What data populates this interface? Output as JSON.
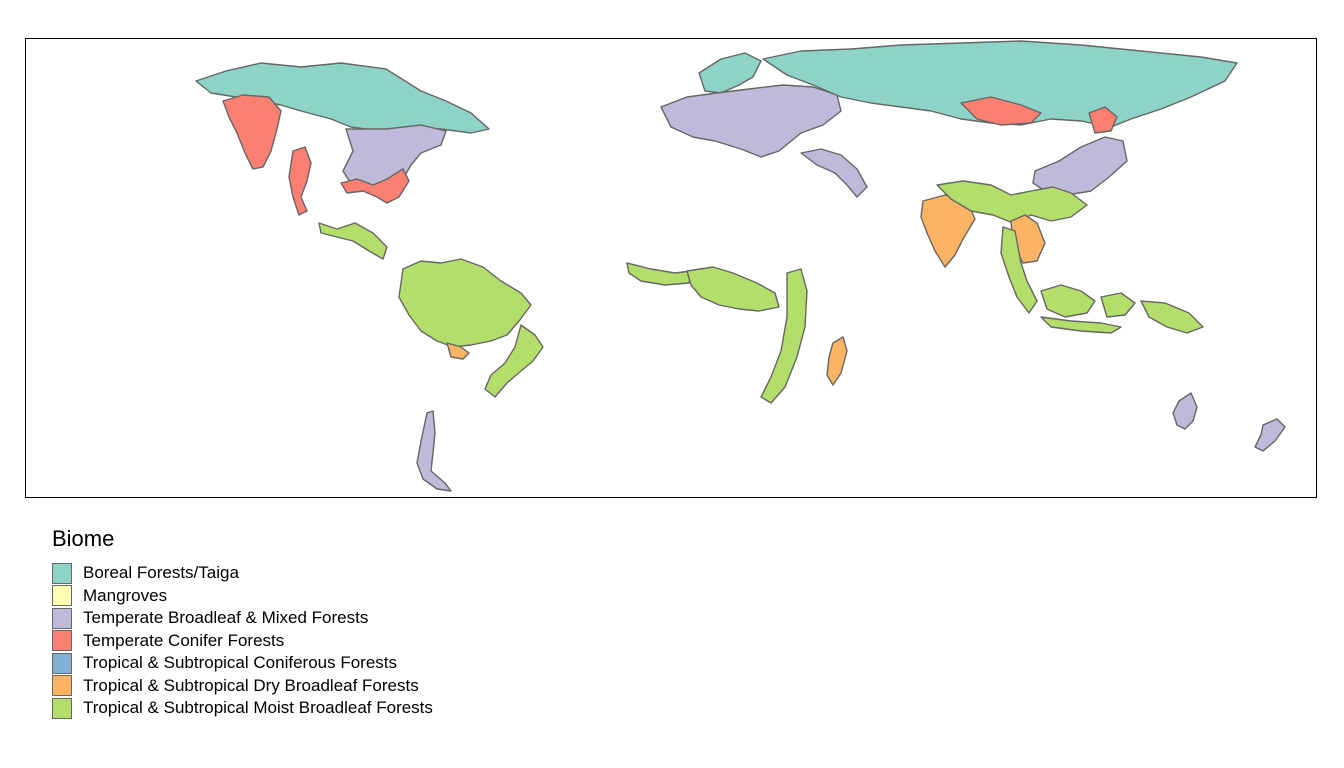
{
  "legend": {
    "title": "Biome",
    "items": [
      {
        "id": "boreal",
        "label": "Boreal Forests/Taiga",
        "color": "#8dd3c7"
      },
      {
        "id": "mangroves",
        "label": "Mangroves",
        "color": "#ffffb3"
      },
      {
        "id": "temp-broadleaf",
        "label": "Temperate Broadleaf & Mixed Forests",
        "color": "#bebada"
      },
      {
        "id": "temp-conifer",
        "label": "Temperate Conifer Forests",
        "color": "#fb8072"
      },
      {
        "id": "trop-conifer",
        "label": "Tropical & Subtropical Coniferous Forests",
        "color": "#80b1d3"
      },
      {
        "id": "trop-dry",
        "label": "Tropical & Subtropical Dry Broadleaf Forests",
        "color": "#fdb462"
      },
      {
        "id": "trop-moist",
        "label": "Tropical & Subtropical Moist Broadleaf Forests",
        "color": "#b3de69"
      }
    ]
  },
  "map": {
    "regions": [
      {
        "name": "boreal-north-america",
        "biome": "boreal"
      },
      {
        "name": "conifer-pacific-northwest",
        "biome": "temp-conifer"
      },
      {
        "name": "broadleaf-eastern-north-america",
        "biome": "temp-broadleaf"
      },
      {
        "name": "conifer-southeast-us",
        "biome": "temp-conifer"
      },
      {
        "name": "conifer-mexico",
        "biome": "temp-conifer"
      },
      {
        "name": "moist-central-america",
        "biome": "trop-moist"
      },
      {
        "name": "moist-amazon",
        "biome": "trop-moist"
      },
      {
        "name": "moist-atlantic-forest",
        "biome": "trop-moist"
      },
      {
        "name": "dry-south-america",
        "biome": "trop-dry"
      },
      {
        "name": "broadleaf-patagonia",
        "biome": "temp-broadleaf"
      },
      {
        "name": "boreal-scandinavia",
        "biome": "boreal"
      },
      {
        "name": "broadleaf-europe",
        "biome": "temp-broadleaf"
      },
      {
        "name": "broadleaf-caucasus",
        "biome": "temp-broadleaf"
      },
      {
        "name": "boreal-siberia",
        "biome": "boreal"
      },
      {
        "name": "conifer-siberia",
        "biome": "temp-conifer"
      },
      {
        "name": "broadleaf-east-asia",
        "biome": "temp-broadleaf"
      },
      {
        "name": "moist-west-africa",
        "biome": "trop-moist"
      },
      {
        "name": "moist-central-africa",
        "biome": "trop-moist"
      },
      {
        "name": "moist-east-africa",
        "biome": "trop-moist"
      },
      {
        "name": "dry-madagascar",
        "biome": "trop-dry"
      },
      {
        "name": "dry-india",
        "biome": "trop-dry"
      },
      {
        "name": "moist-south-asia",
        "biome": "trop-moist"
      },
      {
        "name": "dry-indochina",
        "biome": "trop-dry"
      },
      {
        "name": "moist-southeast-asia",
        "biome": "trop-moist"
      },
      {
        "name": "moist-indonesia",
        "biome": "trop-moist"
      },
      {
        "name": "moist-new-guinea",
        "biome": "trop-moist"
      },
      {
        "name": "broadleaf-australia",
        "biome": "temp-broadleaf"
      },
      {
        "name": "broadleaf-new-zealand",
        "biome": "temp-broadleaf"
      }
    ]
  }
}
